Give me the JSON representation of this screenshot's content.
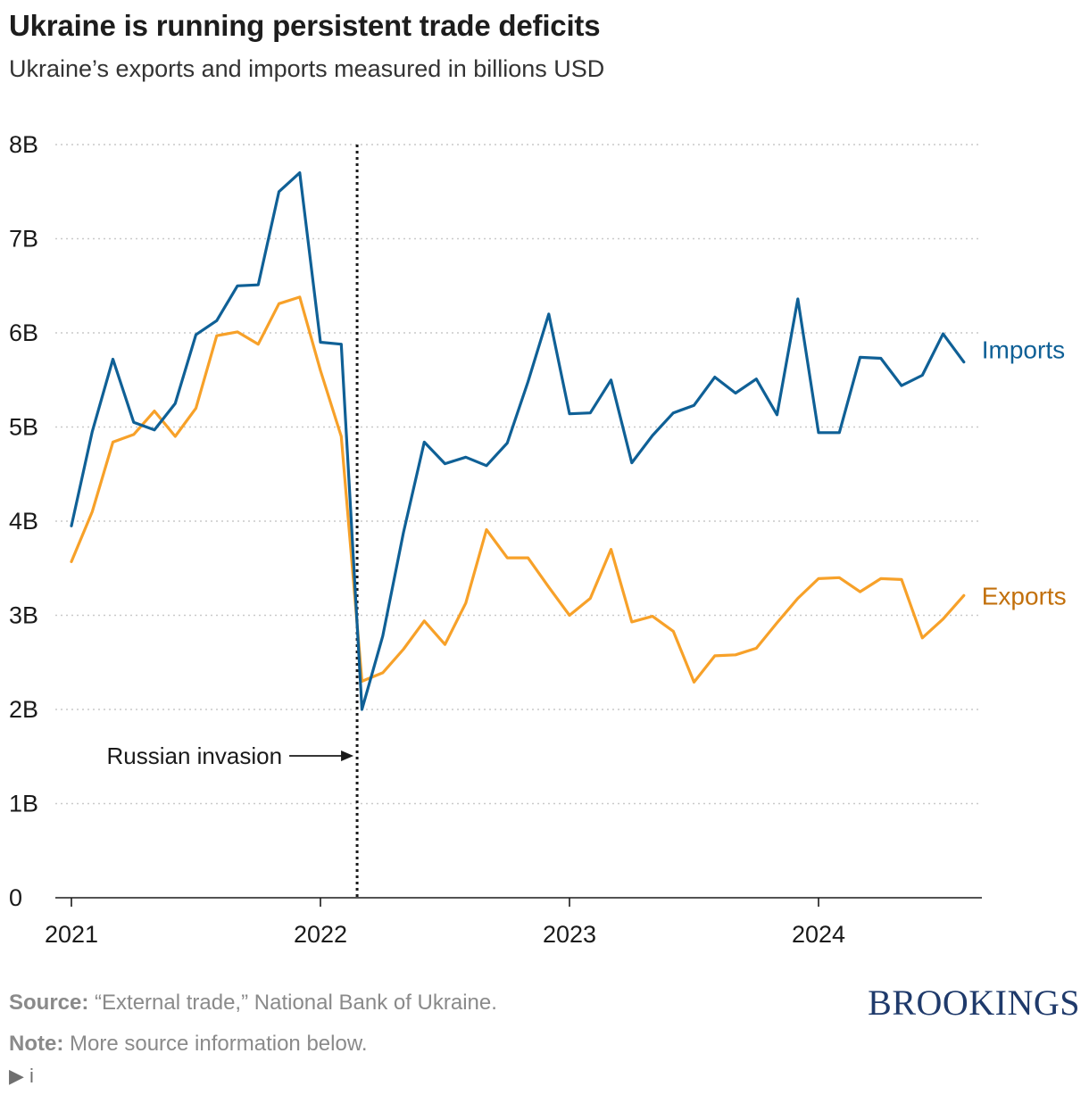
{
  "header": {
    "title": "Ukraine is running persistent trade deficits",
    "subtitle": "Ukraine’s exports and imports measured in billions USD"
  },
  "chart_data": {
    "type": "line",
    "y_ticks": [
      {
        "value": 0,
        "label": "0"
      },
      {
        "value": 1,
        "label": "1B"
      },
      {
        "value": 2,
        "label": "2B"
      },
      {
        "value": 3,
        "label": "3B"
      },
      {
        "value": 4,
        "label": "4B"
      },
      {
        "value": 5,
        "label": "5B"
      },
      {
        "value": 6,
        "label": "6B"
      },
      {
        "value": 7,
        "label": "7B"
      },
      {
        "value": 8,
        "label": "8B"
      }
    ],
    "x_ticks": [
      {
        "value": "2021-01",
        "label": "2021"
      },
      {
        "value": "2022-01",
        "label": "2022"
      },
      {
        "value": "2023-01",
        "label": "2023"
      },
      {
        "value": "2024-01",
        "label": "2024"
      }
    ],
    "x_range": [
      "2021-01",
      "2024-08"
    ],
    "ylim": [
      0,
      8
    ],
    "grid": "horizontal dotted",
    "x": [
      "2021-01",
      "2021-02",
      "2021-03",
      "2021-04",
      "2021-05",
      "2021-06",
      "2021-07",
      "2021-08",
      "2021-09",
      "2021-10",
      "2021-11",
      "2021-12",
      "2022-01",
      "2022-02",
      "2022-03",
      "2022-04",
      "2022-05",
      "2022-06",
      "2022-07",
      "2022-08",
      "2022-09",
      "2022-10",
      "2022-11",
      "2022-12",
      "2023-01",
      "2023-02",
      "2023-03",
      "2023-04",
      "2023-05",
      "2023-06",
      "2023-07",
      "2023-08",
      "2023-09",
      "2023-10",
      "2023-11",
      "2023-12",
      "2024-01",
      "2024-02",
      "2024-03",
      "2024-04",
      "2024-05",
      "2024-06",
      "2024-07",
      "2024-08"
    ],
    "series": [
      {
        "name": "Imports",
        "color": "#0f6096",
        "values": [
          3.95,
          4.95,
          5.72,
          5.05,
          4.97,
          5.25,
          5.98,
          6.13,
          6.5,
          6.51,
          7.5,
          7.7,
          5.9,
          5.88,
          2.0,
          2.78,
          3.88,
          4.84,
          4.61,
          4.68,
          4.59,
          4.83,
          5.48,
          6.2,
          5.14,
          5.15,
          5.5,
          4.62,
          4.91,
          5.15,
          5.23,
          5.53,
          5.36,
          5.51,
          5.13,
          6.36,
          4.94,
          4.94,
          5.74,
          5.73,
          5.44,
          5.55,
          5.99,
          5.69
        ]
      },
      {
        "name": "Exports",
        "color": "#f7a129",
        "values": [
          3.57,
          4.1,
          4.84,
          4.92,
          5.17,
          4.9,
          5.2,
          5.97,
          6.01,
          5.88,
          6.31,
          6.38,
          5.6,
          4.9,
          2.3,
          2.39,
          2.64,
          2.94,
          2.69,
          3.13,
          3.91,
          3.61,
          3.61,
          3.3,
          3.0,
          3.18,
          3.7,
          2.93,
          2.99,
          2.83,
          2.29,
          2.57,
          2.58,
          2.65,
          2.92,
          3.18,
          3.39,
          3.4,
          3.25,
          3.39,
          3.38,
          2.76,
          2.96,
          3.21
        ]
      }
    ],
    "series_label_colors": {
      "Imports": "#0f6096",
      "Exports": "#c2700c"
    },
    "annotations": [
      {
        "label": "Russian invasion",
        "x": "2022-02-24",
        "style": "dotted vertical line with arrow"
      }
    ]
  },
  "footer": {
    "source_label": "Source:",
    "source_text": " “External trade,” National Bank of Ukraine.",
    "note_label": "Note:",
    "note_text": " More source information below.",
    "info_toggle": "▶ i",
    "brand": "BROOKINGS"
  }
}
